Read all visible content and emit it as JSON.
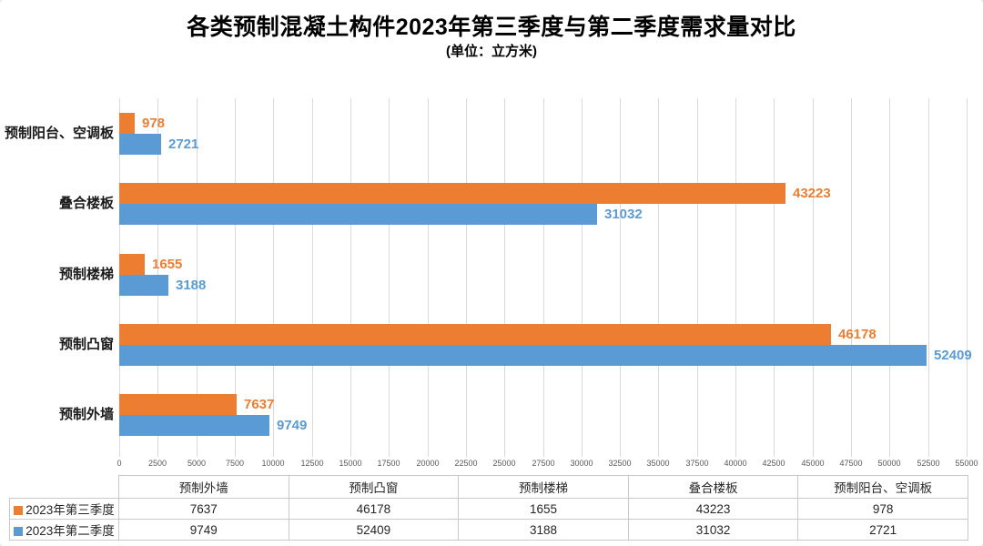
{
  "title": "各类预制混凝土构件2023年第三季度与第二季度需求量对比",
  "subtitle": "(单位：立方米)",
  "colors": {
    "series_q3": "#ED7D31",
    "series_q2": "#5B9BD5",
    "gridline": "#D9D9D9",
    "tick_text": "#595959",
    "table_border": "#C9C9C9",
    "text": "#262626"
  },
  "chart_data": {
    "type": "bar",
    "orientation": "horizontal",
    "title": "各类预制混凝土构件2023年第三季度与第二季度需求量对比",
    "subtitle": "(单位：立方米)",
    "categories": [
      "预制外墙",
      "预制凸窗",
      "预制楼梯",
      "叠合楼板",
      "预制阳台、空调板"
    ],
    "categories_note": "drawn bottom-to-top in plot; 预制外墙 is bottom band",
    "series": [
      {
        "name": "2023年第三季度",
        "color": "#ED7D31",
        "values": [
          7637,
          46178,
          1655,
          43223,
          978
        ]
      },
      {
        "name": "2023年第二季度",
        "color": "#5B9BD5",
        "values": [
          9749,
          52409,
          3188,
          31032,
          2721
        ]
      }
    ],
    "xlim": [
      0,
      55000
    ],
    "xtick_step": 2500,
    "xticks": [
      0,
      2500,
      5000,
      7500,
      10000,
      12500,
      15000,
      17500,
      20000,
      22500,
      25000,
      27500,
      30000,
      32500,
      35000,
      37500,
      40000,
      42500,
      45000,
      47500,
      50000,
      52500,
      55000
    ],
    "grid": true,
    "value_labels": true,
    "legend_position": "table-bottom"
  },
  "table": {
    "columns": [
      "",
      "预制外墙",
      "预制凸窗",
      "预制楼梯",
      "叠合楼板",
      "预制阳台、空调板"
    ],
    "rows": [
      {
        "legend": "2023年第三季度",
        "color": "#ED7D31",
        "values": [
          "7637",
          "46178",
          "1655",
          "43223",
          "978"
        ]
      },
      {
        "legend": "2023年第二季度",
        "color": "#5B9BD5",
        "values": [
          "9749",
          "52409",
          "3188",
          "31032",
          "2721"
        ]
      }
    ]
  }
}
